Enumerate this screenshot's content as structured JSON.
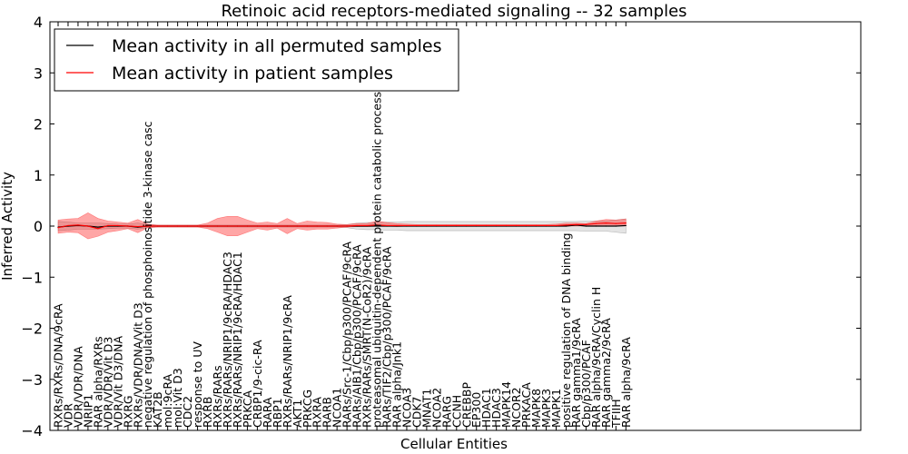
{
  "chart_data": {
    "type": "line",
    "title": "Retinoic acid receptors-mediated signaling -- 32 samples",
    "xlabel": "Cellular Entities",
    "ylabel": "Inferred Activity",
    "ylim": [
      -4,
      4
    ],
    "yticks": [
      {
        "value": 4,
        "label": "4"
      },
      {
        "value": 3,
        "label": "3"
      },
      {
        "value": 2,
        "label": "2"
      },
      {
        "value": 1,
        "label": "1"
      },
      {
        "value": 0,
        "label": "0"
      },
      {
        "value": -1,
        "label": "−1"
      },
      {
        "value": -2,
        "label": "−2"
      },
      {
        "value": -3,
        "label": "−3"
      },
      {
        "value": -4,
        "label": "−4"
      }
    ],
    "legend": {
      "position": "top-left",
      "entries": [
        {
          "label": "Mean activity in all permuted samples",
          "color": "#000000"
        },
        {
          "label": "Mean activity in patient samples",
          "color": "#ff0000"
        }
      ]
    },
    "categories": [
      "RXRs/RXRs/DNA/9cRA",
      "VDR",
      "VDR/VDR/DNA",
      "NRIP1",
      "RAR alpha/RXRs",
      "VDR/VDR/Vit D3",
      "VDR/Vit D3/DNA",
      "RXRG",
      "RXRs/VDR/DNA/Vit D3",
      "negative regulation of phosphoinositide 3-kinase casc",
      "KAT2B",
      "mol:9cRA",
      "mol:Vit D3",
      "CDC2",
      "response to UV",
      "RXRB",
      "RXRs/RARs",
      "RXRs/RARs/NRIP1/9cRA/HDAC3",
      "RXRs/RARs/NRIP1/9cRA/HDAC1",
      "PRKCA",
      "CRBP1/9-cic-RA",
      "RARA",
      "RBP1",
      "RXRs/RARs/NRIP1/9cRA",
      "AKT1",
      "PRKCG",
      "RXRA",
      "RARB",
      "NCOA1",
      "RARs/Src-1/Cbp/p300/PCAF/9cRA",
      "RARs/AIB1/Cbp/p300/PCAF/9cRA",
      "RXRs/RARs/SMRT(N-CoR2)/9cRA",
      "proteasomal ubiquitin-dependent protein catabolic process",
      "RARs/TIF2/Cbp/p300/PCAF/9cRA",
      "RAR alpha/Jnk1",
      "NCOA3",
      "CDK7",
      "MNAT1",
      "NCOA2",
      "RARG",
      "CCNH",
      "CREBBP",
      "EP300",
      "HDAC1",
      "HDAC3",
      "MAPK14",
      "NCOR2",
      "PRKACA",
      "MAPK8",
      "MAPK3",
      "MAPK1",
      "positive regulation of DNA binding",
      "RAR gamma1/9cRA",
      "Cbp/p300/PCAF",
      "RAR alpha/9cRA/Cyclin H",
      "RAR gamma2/9cRA",
      "TFIIH",
      "RAR alpha/9cRA"
    ],
    "series": [
      {
        "name": "Mean activity in all permuted samples",
        "color": "#000000",
        "values": [
          -0.02,
          0.0,
          0.01,
          0.0,
          -0.02,
          0.0,
          0.0,
          0.0,
          -0.02,
          0.0,
          0.0,
          0.0,
          0.0,
          0.0,
          0.0,
          0.0,
          0.0,
          0.0,
          0.0,
          0.0,
          0.0,
          0.0,
          0.0,
          0.0,
          0.0,
          0.0,
          0.0,
          0.0,
          0.0,
          0.0,
          0.0,
          0.0,
          0.0,
          0.0,
          0.0,
          0.0,
          0.0,
          0.0,
          0.0,
          0.0,
          0.0,
          0.0,
          0.0,
          0.0,
          0.0,
          0.0,
          0.0,
          0.0,
          0.0,
          0.0,
          0.0,
          0.0,
          0.02,
          0.0,
          0.0,
          0.0,
          0.0,
          0.01
        ],
        "band_low": [
          -0.09,
          -0.08,
          -0.06,
          -0.06,
          -0.06,
          -0.05,
          -0.04,
          -0.04,
          -0.06,
          -0.03,
          -0.02,
          -0.02,
          -0.02,
          -0.02,
          -0.02,
          -0.02,
          -0.02,
          -0.02,
          -0.02,
          -0.02,
          -0.02,
          -0.02,
          -0.02,
          -0.02,
          -0.02,
          -0.02,
          -0.02,
          -0.02,
          -0.02,
          -0.03,
          -0.06,
          -0.07,
          -0.07,
          -0.08,
          -0.08,
          -0.09,
          -0.09,
          -0.09,
          -0.09,
          -0.09,
          -0.09,
          -0.09,
          -0.09,
          -0.09,
          -0.09,
          -0.09,
          -0.09,
          -0.09,
          -0.09,
          -0.09,
          -0.09,
          -0.09,
          -0.09,
          -0.1,
          -0.1,
          -0.1,
          -0.12,
          -0.14
        ],
        "band_high": [
          0.09,
          0.08,
          0.06,
          0.06,
          0.06,
          0.05,
          0.04,
          0.04,
          0.06,
          0.03,
          0.02,
          0.02,
          0.02,
          0.02,
          0.02,
          0.02,
          0.02,
          0.02,
          0.02,
          0.02,
          0.02,
          0.02,
          0.02,
          0.02,
          0.02,
          0.02,
          0.02,
          0.02,
          0.02,
          0.03,
          0.06,
          0.07,
          0.07,
          0.08,
          0.08,
          0.09,
          0.09,
          0.09,
          0.09,
          0.09,
          0.09,
          0.09,
          0.09,
          0.09,
          0.09,
          0.09,
          0.09,
          0.09,
          0.09,
          0.09,
          0.09,
          0.09,
          0.09,
          0.1,
          0.1,
          0.1,
          0.12,
          0.14
        ]
      },
      {
        "name": "Mean activity in patient samples",
        "color": "#ff0000",
        "values": [
          -0.03,
          0.01,
          0.02,
          0.0,
          -0.05,
          0.01,
          0.01,
          0.0,
          -0.01,
          0.0,
          0.0,
          0.0,
          0.0,
          0.0,
          0.0,
          0.0,
          0.0,
          0.0,
          0.0,
          0.0,
          0.0,
          0.0,
          0.0,
          0.0,
          0.0,
          0.0,
          0.0,
          0.0,
          0.0,
          0.0,
          0.01,
          0.01,
          0.02,
          0.01,
          0.01,
          0.01,
          0.01,
          0.01,
          0.01,
          0.01,
          0.01,
          0.01,
          0.01,
          0.01,
          0.01,
          0.01,
          0.01,
          0.01,
          0.01,
          0.01,
          0.01,
          0.02,
          0.03,
          0.03,
          0.05,
          0.06,
          0.05,
          0.06
        ],
        "band_low": [
          -0.14,
          -0.12,
          -0.13,
          -0.25,
          -0.2,
          -0.12,
          -0.09,
          -0.05,
          -0.13,
          -0.03,
          -0.02,
          -0.02,
          -0.02,
          -0.02,
          -0.02,
          -0.05,
          -0.12,
          -0.19,
          -0.19,
          -0.12,
          -0.05,
          -0.08,
          -0.04,
          -0.15,
          -0.05,
          -0.08,
          -0.06,
          -0.06,
          -0.04,
          -0.02,
          -0.01,
          -0.01,
          0.0,
          0.0,
          -0.01,
          0.0,
          0.0,
          0.0,
          0.0,
          0.0,
          0.0,
          0.0,
          0.0,
          0.0,
          0.0,
          0.0,
          0.0,
          0.0,
          0.0,
          0.0,
          0.0,
          0.0,
          0.0,
          0.0,
          0.01,
          0.0,
          0.0,
          0.0
        ],
        "band_high": [
          0.12,
          0.14,
          0.15,
          0.26,
          0.15,
          0.1,
          0.08,
          0.06,
          0.13,
          0.04,
          0.02,
          0.02,
          0.02,
          0.02,
          0.02,
          0.06,
          0.15,
          0.19,
          0.19,
          0.12,
          0.06,
          0.08,
          0.05,
          0.15,
          0.05,
          0.1,
          0.08,
          0.07,
          0.04,
          0.03,
          0.05,
          0.05,
          0.1,
          0.07,
          0.05,
          0.04,
          0.03,
          0.03,
          0.03,
          0.03,
          0.03,
          0.03,
          0.03,
          0.03,
          0.03,
          0.03,
          0.03,
          0.03,
          0.03,
          0.03,
          0.04,
          0.06,
          0.06,
          0.05,
          0.1,
          0.13,
          0.12,
          0.14
        ]
      }
    ]
  }
}
